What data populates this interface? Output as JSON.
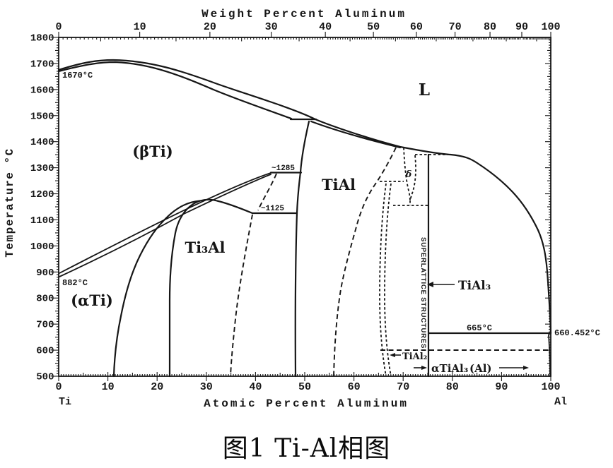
{
  "figure": {
    "caption": "图1  Ti-Al相图"
  },
  "axes": {
    "top": {
      "title": "Weight Percent Aluminum",
      "ticks": [
        "0",
        "10",
        "20",
        "30",
        "40",
        "50",
        "60",
        "70",
        "80",
        "90",
        "100"
      ]
    },
    "bottom": {
      "title": "Atomic Percent Aluminum",
      "ticks": [
        "0",
        "10",
        "20",
        "30",
        "40",
        "50",
        "60",
        "70",
        "80",
        "90",
        "100"
      ],
      "left_end_label": "Ti",
      "right_end_label": "Al"
    },
    "left": {
      "title": "Temperature °C",
      "ticks": [
        "1800",
        "1700",
        "1600",
        "1500",
        "1400",
        "1300",
        "1200",
        "1100",
        "1000",
        "900",
        "800",
        "700",
        "600",
        "500"
      ]
    }
  },
  "labels": {
    "liquid": "L",
    "beta_ti": "(βTi)",
    "alpha_ti": "(αTi)",
    "ti3al": "Ti₃Al",
    "tial": "TiAl",
    "delta": "δ",
    "tial3": "TiAl₃",
    "tial2": "TiAl₂",
    "alpha_tial3": "αTiAl₃",
    "al_solid": "(Al)",
    "superlattice": "SUPERLATTICE STRUCTURES"
  },
  "annotations": {
    "ti_melting": "1670°C",
    "ti_allotropic": "882°C",
    "peritectoid": "~1285",
    "eutectoid": "~1125",
    "al_eutectic": "665°C",
    "al_melting": "660.452°C"
  },
  "chart_data": {
    "type": "line",
    "subtype": "binary phase diagram (Ti-Al system)",
    "title": "图1 Ti-Al相图",
    "xlabel": "Atomic Percent Aluminum",
    "xlabel_secondary_top": "Weight Percent Aluminum",
    "ylabel": "Temperature °C",
    "xlim": [
      0,
      100
    ],
    "ylim": [
      500,
      1800
    ],
    "x_ticks": [
      0,
      10,
      20,
      30,
      40,
      50,
      60,
      70,
      80,
      90,
      100
    ],
    "top_axis_ticks_wt_pct": [
      0,
      10,
      20,
      30,
      40,
      50,
      60,
      70,
      80,
      90,
      100
    ],
    "y_ticks": [
      500,
      600,
      700,
      800,
      900,
      1000,
      1100,
      1200,
      1300,
      1400,
      1500,
      1600,
      1700,
      1800
    ],
    "grid": false,
    "end_members": [
      "Ti",
      "Al"
    ],
    "phases": [
      "L",
      "(βTi)",
      "(αTi)",
      "Ti₃Al",
      "TiAl",
      "δ",
      "TiAl₂",
      "TiAl₃ (superlattice structures)",
      "(Al)"
    ],
    "invariant_temperatures_C": {
      "Ti_beta_melting": 1670,
      "Ti_alpha_beta_transformation": 882,
      "peritectoid_TiAl": "~1285",
      "eutectoid_Ti3Al": "~1125",
      "Al_side_eutectic": 665,
      "Al_melting": 660.452
    },
    "boundaries": [
      {
        "name": "liquidus Ti side",
        "style": "solid",
        "points_at_pct_C": [
          [
            0,
            1670
          ],
          [
            11,
            1712
          ],
          [
            31,
            1628
          ],
          [
            43,
            1558
          ],
          [
            52,
            1487
          ]
        ]
      },
      {
        "name": "solidus Ti side",
        "style": "solid",
        "points_at_pct_C": [
          [
            0,
            1670
          ],
          [
            11,
            1706
          ],
          [
            31,
            1598
          ],
          [
            44,
            1535
          ],
          [
            47,
            1487
          ]
        ]
      },
      {
        "name": "peritectic line",
        "style": "solid",
        "points_at_pct_C": [
          [
            47,
            1487
          ],
          [
            52,
            1487
          ]
        ]
      },
      {
        "name": "liquidus Al side",
        "style": "solid",
        "points_at_pct_C": [
          [
            52,
            1487
          ],
          [
            69,
            1380
          ],
          [
            80,
            1350
          ],
          [
            85,
            1320
          ],
          [
            91,
            1245
          ],
          [
            96,
            1118
          ],
          [
            99,
            995
          ],
          [
            100,
            660
          ]
        ]
      },
      {
        "name": "TiAl upper solidus",
        "style": "solid",
        "points_at_pct_C": [
          [
            51,
            1480
          ],
          [
            69,
            1383
          ]
        ]
      },
      {
        "name": "beta/alpha transus upper",
        "style": "solid",
        "points_at_pct_C": [
          [
            0,
            882
          ],
          [
            8,
            969
          ],
          [
            20,
            1082
          ],
          [
            28,
            1161
          ],
          [
            43,
            1285
          ]
        ]
      },
      {
        "name": "beta/alpha transus lower",
        "style": "solid",
        "points_at_pct_C": [
          [
            0,
            882
          ],
          [
            8,
            950
          ],
          [
            20,
            1060
          ],
          [
            28,
            1148
          ],
          [
            43,
            1281
          ]
        ]
      },
      {
        "name": "peritectoid line ~1285",
        "style": "solid",
        "points_at_pct_C": [
          [
            43,
            1285
          ],
          [
            49,
            1285
          ]
        ]
      },
      {
        "name": "eutectoid line ~1125",
        "style": "solid",
        "points_at_pct_C": [
          [
            39,
            1125
          ],
          [
            48,
            1125
          ]
        ]
      },
      {
        "name": "alpha / alpha+Ti3Al solvus",
        "style": "solid",
        "points_at_pct_C": [
          [
            11,
            500
          ],
          [
            15,
            882
          ],
          [
            20,
            1050
          ],
          [
            29,
            1173
          ]
        ]
      },
      {
        "name": "Ti3Al left boundary",
        "style": "solid",
        "points_at_pct_C": [
          [
            23,
            500
          ],
          [
            24,
            1044
          ],
          [
            29,
            1173
          ]
        ]
      },
      {
        "name": "Ti3Al dome right",
        "style": "solid",
        "points_at_pct_C": [
          [
            29,
            1173
          ],
          [
            32,
            1173
          ],
          [
            39,
            1126
          ]
        ]
      },
      {
        "name": "Ti3Al/TiAl boundary",
        "style": "solid",
        "points_at_pct_C": [
          [
            51,
            1478
          ],
          [
            49,
            1283
          ],
          [
            48,
            1126
          ],
          [
            48,
            500
          ]
        ]
      },
      {
        "name": "Ti3Al right boundary",
        "style": "dashed",
        "points_at_pct_C": [
          [
            39,
            1120
          ],
          [
            36,
            935
          ],
          [
            35,
            500
          ]
        ]
      },
      {
        "name": "connector 1285 to 1125",
        "style": "dashed",
        "points_at_pct_C": [
          [
            44,
            1277
          ],
          [
            40,
            1137
          ]
        ]
      },
      {
        "name": "TiAl right boundary",
        "style": "dashed",
        "points_at_pct_C": [
          [
            68,
            1378
          ],
          [
            64,
            1234
          ],
          [
            60,
            1063
          ],
          [
            57,
            833
          ],
          [
            56,
            500
          ]
        ]
      },
      {
        "name": "TiAl2 double line",
        "style": "dashed",
        "points_at_pct_C": [
          [
            66.5,
            1240
          ],
          [
            66.5,
            500
          ]
        ]
      },
      {
        "name": "delta phase loop",
        "style": "dashed",
        "points_at_pct_C": [
          [
            70,
            1365
          ],
          [
            71,
            1175
          ],
          [
            72.5,
            1350
          ]
        ]
      },
      {
        "name": "horizontal dashed ~1350",
        "style": "dashed",
        "points_at_pct_C": [
          [
            72.5,
            1350
          ],
          [
            79.5,
            1350
          ]
        ]
      },
      {
        "name": "horizontal dashed ~1250",
        "style": "dashed",
        "points_at_pct_C": [
          [
            65,
            1248
          ],
          [
            70,
            1248
          ]
        ]
      },
      {
        "name": "horizontal dashed ~1155",
        "style": "dashed",
        "points_at_pct_C": [
          [
            68,
            1156
          ],
          [
            75,
            1156
          ]
        ]
      },
      {
        "name": "horizontal dashed 600",
        "style": "dashed",
        "points_at_pct_C": [
          [
            65,
            600
          ],
          [
            100,
            600
          ]
        ]
      },
      {
        "name": "TiAl3 superlattice vertical line",
        "style": "solid",
        "points_at_pct_C": [
          [
            75,
            1350
          ],
          [
            75,
            500
          ]
        ]
      },
      {
        "name": "665C eutectic line",
        "style": "solid",
        "points_at_pct_C": [
          [
            75,
            665
          ],
          [
            100,
            665
          ]
        ]
      },
      {
        "name": "(Al) solvus",
        "style": "solid",
        "points_at_pct_C": [
          [
            99.6,
            660
          ],
          [
            99.8,
            500
          ]
        ]
      }
    ]
  }
}
